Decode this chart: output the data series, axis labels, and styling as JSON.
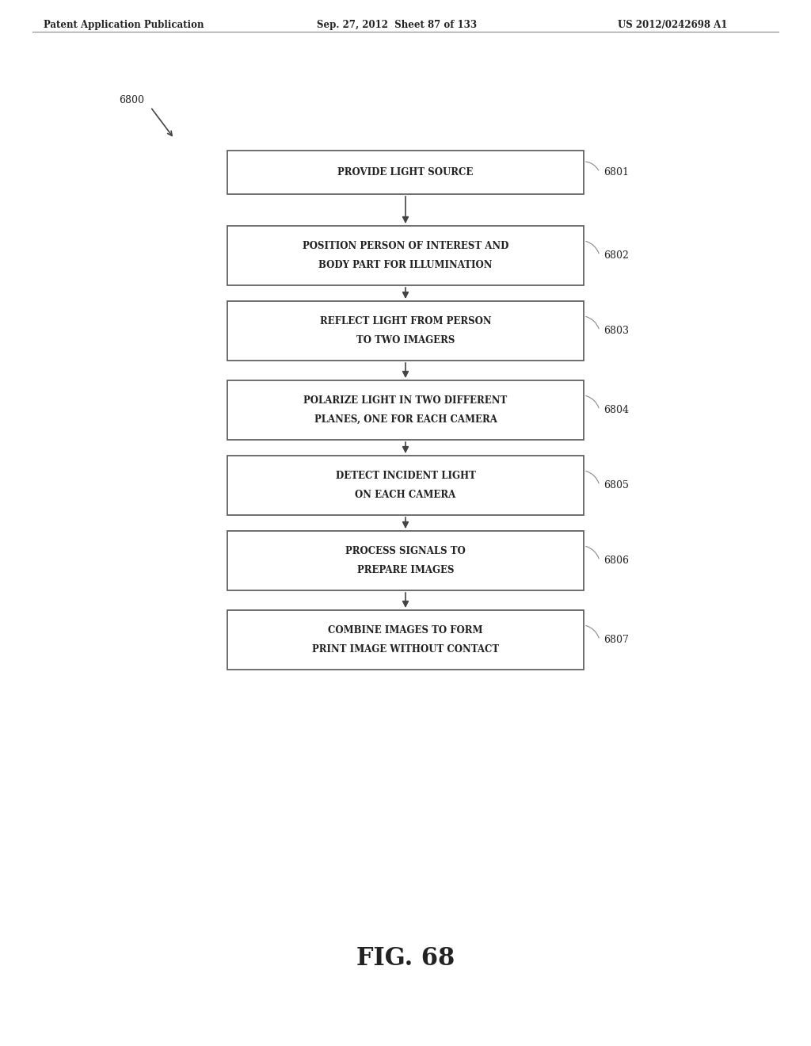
{
  "header_left": "Patent Application Publication",
  "header_mid": "Sep. 27, 2012  Sheet 87 of 133",
  "header_right": "US 2012/0242698 A1",
  "figure_label": "FIG. 68",
  "diagram_label": "6800",
  "background_color": "#ffffff",
  "box_fill": "#ffffff",
  "box_edge": "#555555",
  "text_color": "#222222",
  "arrow_color": "#444444",
  "boxes": [
    {
      "id": "6801",
      "line1": "PROVIDE LIGHT SOURCE",
      "line2": ""
    },
    {
      "id": "6802",
      "line1": "POSITION PERSON OF INTEREST AND",
      "line2": "BODY PART FOR ILLUMINATION"
    },
    {
      "id": "6803",
      "line1": "REFLECT LIGHT FROM PERSON",
      "line2": "TO TWO IMAGERS"
    },
    {
      "id": "6804",
      "line1": "POLARIZE LIGHT IN TWO DIFFERENT",
      "line2": "PLANES, ONE FOR EACH CAMERA"
    },
    {
      "id": "6805",
      "line1": "DETECT INCIDENT LIGHT",
      "line2": "ON EACH CAMERA"
    },
    {
      "id": "6806",
      "line1": "PROCESS SIGNALS TO",
      "line2": "PREPARE IMAGES"
    },
    {
      "id": "6807",
      "line1": "COMBINE IMAGES TO FORM",
      "line2": "PRINT IMAGE WITHOUT CONTACT"
    }
  ]
}
